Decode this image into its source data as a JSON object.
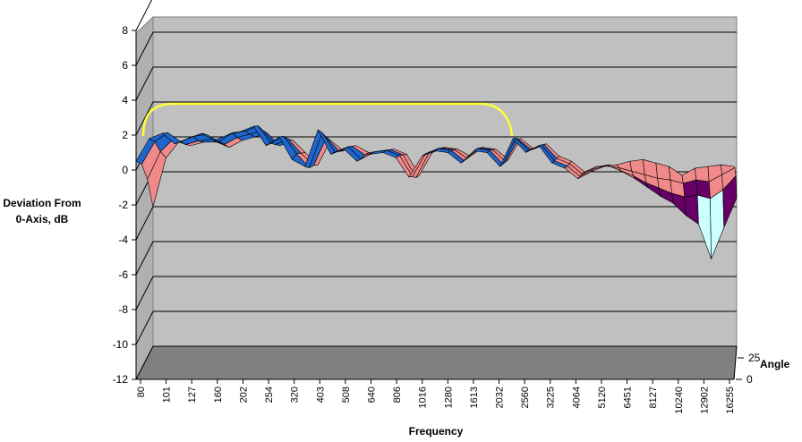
{
  "chart_data": {
    "type": "surface",
    "xlabel": "Frequency",
    "ylabel_line1": "Deviation From",
    "ylabel_line2": "0-Axis, dB",
    "zlabel": "Angle",
    "ylim": [
      -12,
      8
    ],
    "y_ticks": [
      "8",
      "6",
      "4",
      "2",
      "0",
      "-2",
      "-4",
      "-6",
      "-8",
      "-10",
      "-12"
    ],
    "x_tick_labels": [
      "80",
      "101",
      "127",
      "160",
      "202",
      "254",
      "320",
      "403",
      "508",
      "640",
      "806",
      "1016",
      "1280",
      "1613",
      "2032",
      "2560",
      "3225",
      "4064",
      "5120",
      "6451",
      "8127",
      "10240",
      "12902",
      "16255"
    ],
    "z_ticks": [
      "0",
      "25"
    ],
    "frequencies": [
      80,
      90,
      101,
      113,
      127,
      143,
      160,
      180,
      202,
      227,
      254,
      286,
      320,
      359,
      403,
      452,
      508,
      570,
      640,
      718,
      806,
      905,
      1016,
      1140,
      1280,
      1437,
      1613,
      1810,
      2032,
      2281,
      2560,
      2873,
      3225,
      3620,
      4064,
      4561,
      5120,
      5746,
      6451,
      7241,
      8127,
      9121,
      10240,
      11493,
      12902,
      14481,
      16255
    ],
    "series": [
      {
        "angle": 0,
        "values": [
          0.5,
          1.8,
          2.1,
          1.5,
          1.8,
          2.1,
          1.7,
          2.0,
          2.2,
          2.5,
          1.4,
          1.9,
          0.6,
          0.2,
          2.3,
          0.9,
          1.2,
          0.5,
          0.9,
          1.0,
          0.7,
          -0.4,
          0.8,
          1.1,
          1.0,
          0.4,
          1.1,
          1.0,
          0.2,
          1.8,
          1.0,
          1.4,
          0.4,
          0.1,
          -0.5,
          -0.1,
          0.2,
          0.3,
          0.5,
          0.6,
          0.4,
          0.2,
          -0.3,
          0.1,
          0.2,
          0.3,
          0.2
        ]
      },
      {
        "angle": 10,
        "values": [
          -0.3,
          1.0,
          1.5,
          1.0,
          1.3,
          1.4,
          1.0,
          1.5,
          1.6,
          1.9,
          0.9,
          1.3,
          0.3,
          -0.5,
          1.5,
          0.4,
          0.7,
          0.0,
          0.4,
          0.5,
          0.2,
          -1.0,
          0.3,
          0.6,
          0.5,
          -0.1,
          0.6,
          0.5,
          -0.3,
          1.2,
          0.5,
          0.8,
          -0.1,
          -0.4,
          -1.0,
          -0.6,
          -0.4,
          -0.5,
          -0.7,
          -0.9,
          -1.1,
          -1.2,
          -1.4,
          -1.2,
          -1.3,
          -0.9,
          -0.5
        ]
      },
      {
        "angle": 20,
        "values": [
          -1.8,
          -0.2,
          0.5,
          0.2,
          0.4,
          0.5,
          0.2,
          0.6,
          0.8,
          1.0,
          0.2,
          0.5,
          -0.3,
          -1.0,
          0.6,
          -0.2,
          0.1,
          -0.4,
          -0.2,
          -0.1,
          -0.4,
          -1.7,
          -0.3,
          0.0,
          -0.1,
          -0.6,
          0.0,
          -0.1,
          -0.8,
          0.5,
          -0.1,
          0.2,
          -0.6,
          -0.9,
          -1.5,
          -1.1,
          -1.0,
          -1.3,
          -1.6,
          -2.0,
          -2.3,
          -2.6,
          -2.8,
          -2.7,
          -2.9,
          -2.4,
          -1.6
        ]
      },
      {
        "angle": 30,
        "values": [
          -4.0,
          -1.2,
          -0.3,
          -0.5,
          -0.3,
          -0.3,
          -0.6,
          -0.2,
          0.0,
          0.2,
          -0.5,
          -0.2,
          -0.9,
          -1.6,
          -0.2,
          -0.8,
          -0.5,
          -0.9,
          -0.8,
          -0.7,
          -1.0,
          -2.2,
          -0.9,
          -0.6,
          -0.7,
          -1.1,
          -0.6,
          -0.7,
          -1.3,
          -0.1,
          -0.7,
          -0.4,
          -1.1,
          -1.4,
          -2.0,
          -1.7,
          -1.6,
          -2.0,
          -2.4,
          -2.9,
          -3.4,
          -3.8,
          -4.5,
          -5.0,
          -7.0,
          -5.2,
          -3.5
        ]
      }
    ]
  }
}
